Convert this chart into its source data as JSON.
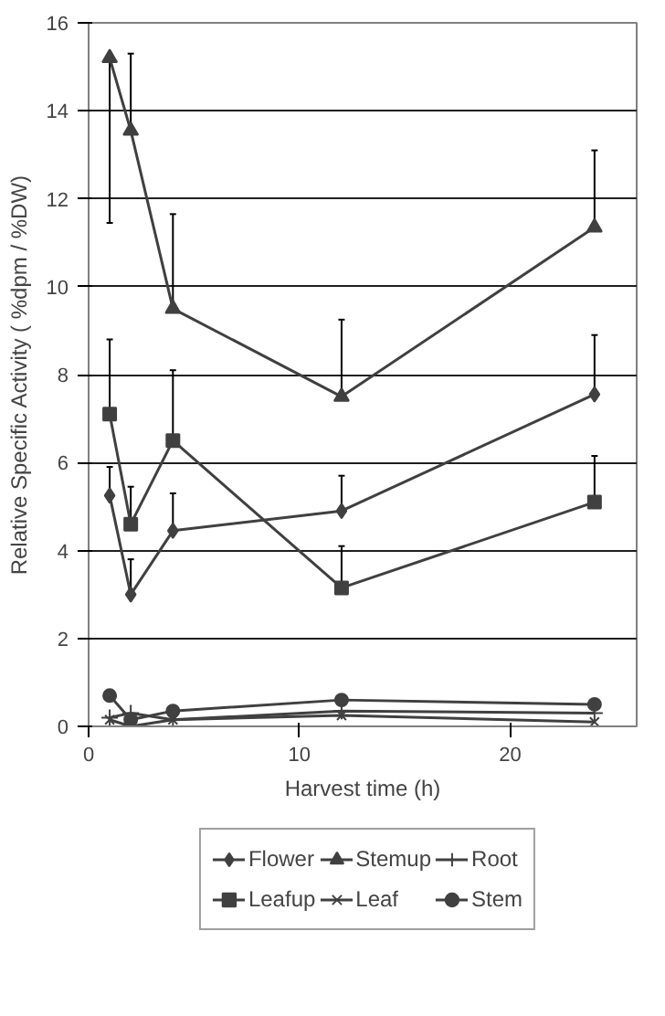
{
  "chart_data": {
    "type": "line",
    "xlabel": "Harvest time (h)",
    "ylabel": "Relative Specific Activity ( %dpm / %DW)",
    "x": [
      1,
      2,
      4,
      12,
      24
    ],
    "xlim": [
      0,
      26
    ],
    "xticks": [
      0,
      10,
      20
    ],
    "ylim": [
      0,
      16
    ],
    "yticks": [
      0,
      2,
      4,
      6,
      8,
      10,
      12,
      14,
      16
    ],
    "grid": "y",
    "legend": "bottom",
    "series": [
      {
        "name": "Flower",
        "color": "#404040",
        "marker": "diamond",
        "values": [
          5.25,
          3.0,
          4.45,
          4.9,
          7.55
        ],
        "errors": [
          [
            5.25,
            5.9
          ],
          [
            3.0,
            3.8
          ],
          [
            4.45,
            5.3
          ],
          [
            4.9,
            5.7
          ],
          [
            7.55,
            8.9
          ]
        ]
      },
      {
        "name": "Leafup",
        "color": "#404040",
        "marker": "square",
        "values": [
          7.1,
          4.6,
          6.5,
          3.15,
          5.1
        ],
        "errors": [
          [
            7.1,
            8.8
          ],
          [
            4.6,
            5.45
          ],
          [
            6.5,
            8.1
          ],
          [
            3.15,
            4.1
          ],
          [
            5.1,
            6.15
          ]
        ]
      },
      {
        "name": "Stemup",
        "color": "#404040",
        "marker": "triangle",
        "values": [
          15.2,
          13.55,
          9.5,
          7.5,
          11.35
        ],
        "errors": [
          [
            11.45,
            15.2
          ],
          [
            13.55,
            15.3
          ],
          [
            9.5,
            11.65
          ],
          [
            7.5,
            9.25
          ],
          [
            11.35,
            13.1
          ]
        ]
      },
      {
        "name": "Leaf",
        "color": "#404040",
        "marker": "x",
        "values": [
          0.15,
          0.0,
          0.15,
          0.25,
          0.1
        ]
      },
      {
        "name": "Root",
        "color": "#404040",
        "marker": "cross",
        "values": [
          0.2,
          0.3,
          0.15,
          0.35,
          0.3
        ]
      },
      {
        "name": "Stem",
        "color": "#404040",
        "marker": "circle",
        "values": [
          0.7,
          0.15,
          0.35,
          0.6,
          0.5
        ]
      }
    ]
  }
}
